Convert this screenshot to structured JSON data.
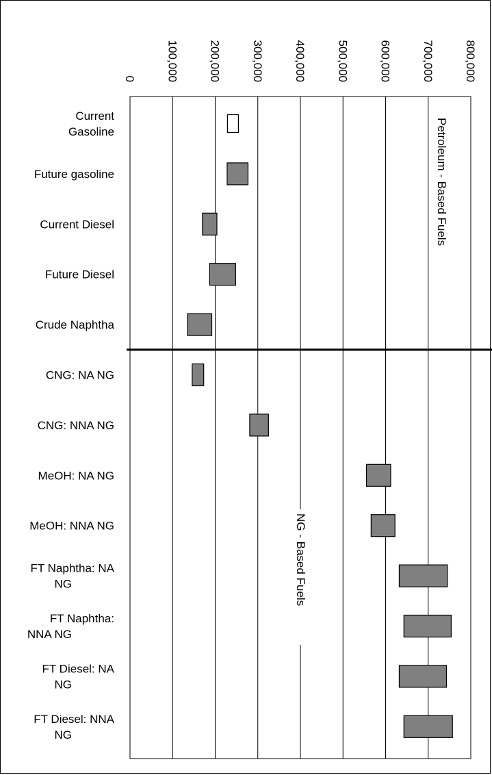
{
  "chart_data": {
    "type": "bar",
    "orientation": "horizontal-range",
    "title": "",
    "xlabel": "",
    "ylabel": "",
    "xlim": [
      0,
      800000
    ],
    "grid": true,
    "ticks": [
      "0",
      "100,000",
      "200,000",
      "300,000",
      "400,000",
      "500,000",
      "600,000",
      "700,000",
      "800,000"
    ],
    "tick_values": [
      0,
      100000,
      200000,
      300000,
      400000,
      500000,
      600000,
      700000,
      800000
    ],
    "categories": [
      [
        "Current",
        "Gasoline"
      ],
      [
        "Future gasoline"
      ],
      [
        "Current Diesel"
      ],
      [
        "Future Diesel"
      ],
      [
        "Crude Naphtha"
      ],
      [
        "CNG: NA NG"
      ],
      [
        "CNG: NNA NG"
      ],
      [
        "MeOH: NA NG"
      ],
      [
        "MeOH: NNA NG"
      ],
      [
        "FT Naphtha: NA",
        "NG"
      ],
      [
        "FT Naphtha:",
        "NNA NG"
      ],
      [
        "FT Diesel: NA",
        "NG"
      ],
      [
        "FT Diesel: NNA",
        "NG"
      ]
    ],
    "ranges": [
      [
        228000,
        252000
      ],
      [
        228000,
        277000
      ],
      [
        170000,
        204000
      ],
      [
        187000,
        248000
      ],
      [
        135000,
        192000
      ],
      [
        146000,
        173000
      ],
      [
        281000,
        325000
      ],
      [
        555000,
        612000
      ],
      [
        566000,
        622000
      ],
      [
        632000,
        745000
      ],
      [
        643000,
        754000
      ],
      [
        632000,
        743000
      ],
      [
        643000,
        757000
      ]
    ],
    "colors": [
      "#ffffff",
      "#808080",
      "#808080",
      "#808080",
      "#808080",
      "#808080",
      "#808080",
      "#808080",
      "#808080",
      "#808080",
      "#808080",
      "#808080",
      "#808080"
    ],
    "groups": [
      {
        "label": "Petroleum - Based Fuels"
      },
      {
        "label": "NG - Based Fuels"
      }
    ]
  }
}
